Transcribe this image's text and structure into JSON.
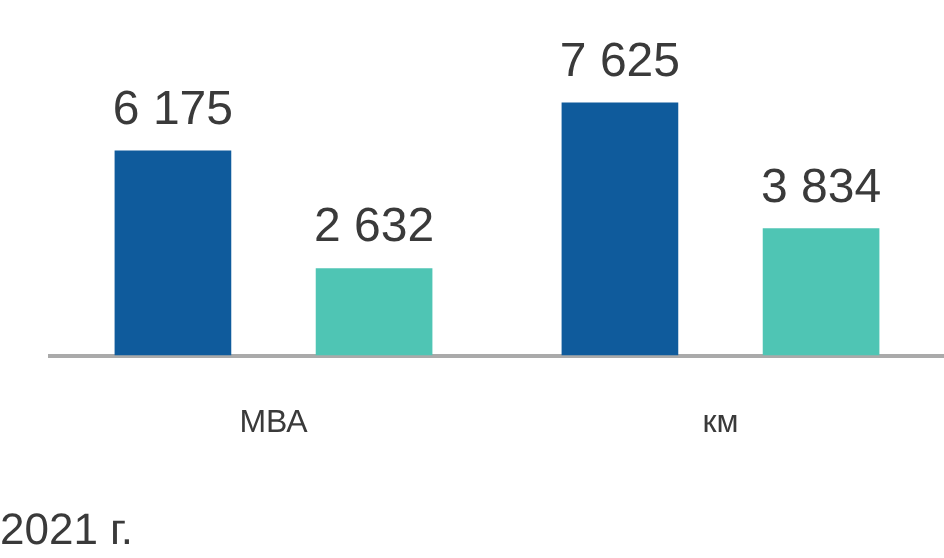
{
  "chart_data": {
    "type": "bar",
    "categories": [
      "МВА",
      "км"
    ],
    "series": [
      {
        "color": "#0f5b9c",
        "values": [
          6175,
          7625
        ],
        "value_labels": [
          "6 175",
          "7 625"
        ]
      },
      {
        "color": "#4fc5b4",
        "values": [
          2632,
          3834
        ],
        "value_labels": [
          "2 632",
          "3 834"
        ]
      }
    ],
    "grid": false,
    "legend": false,
    "annotations": [
      "2021 г."
    ]
  }
}
